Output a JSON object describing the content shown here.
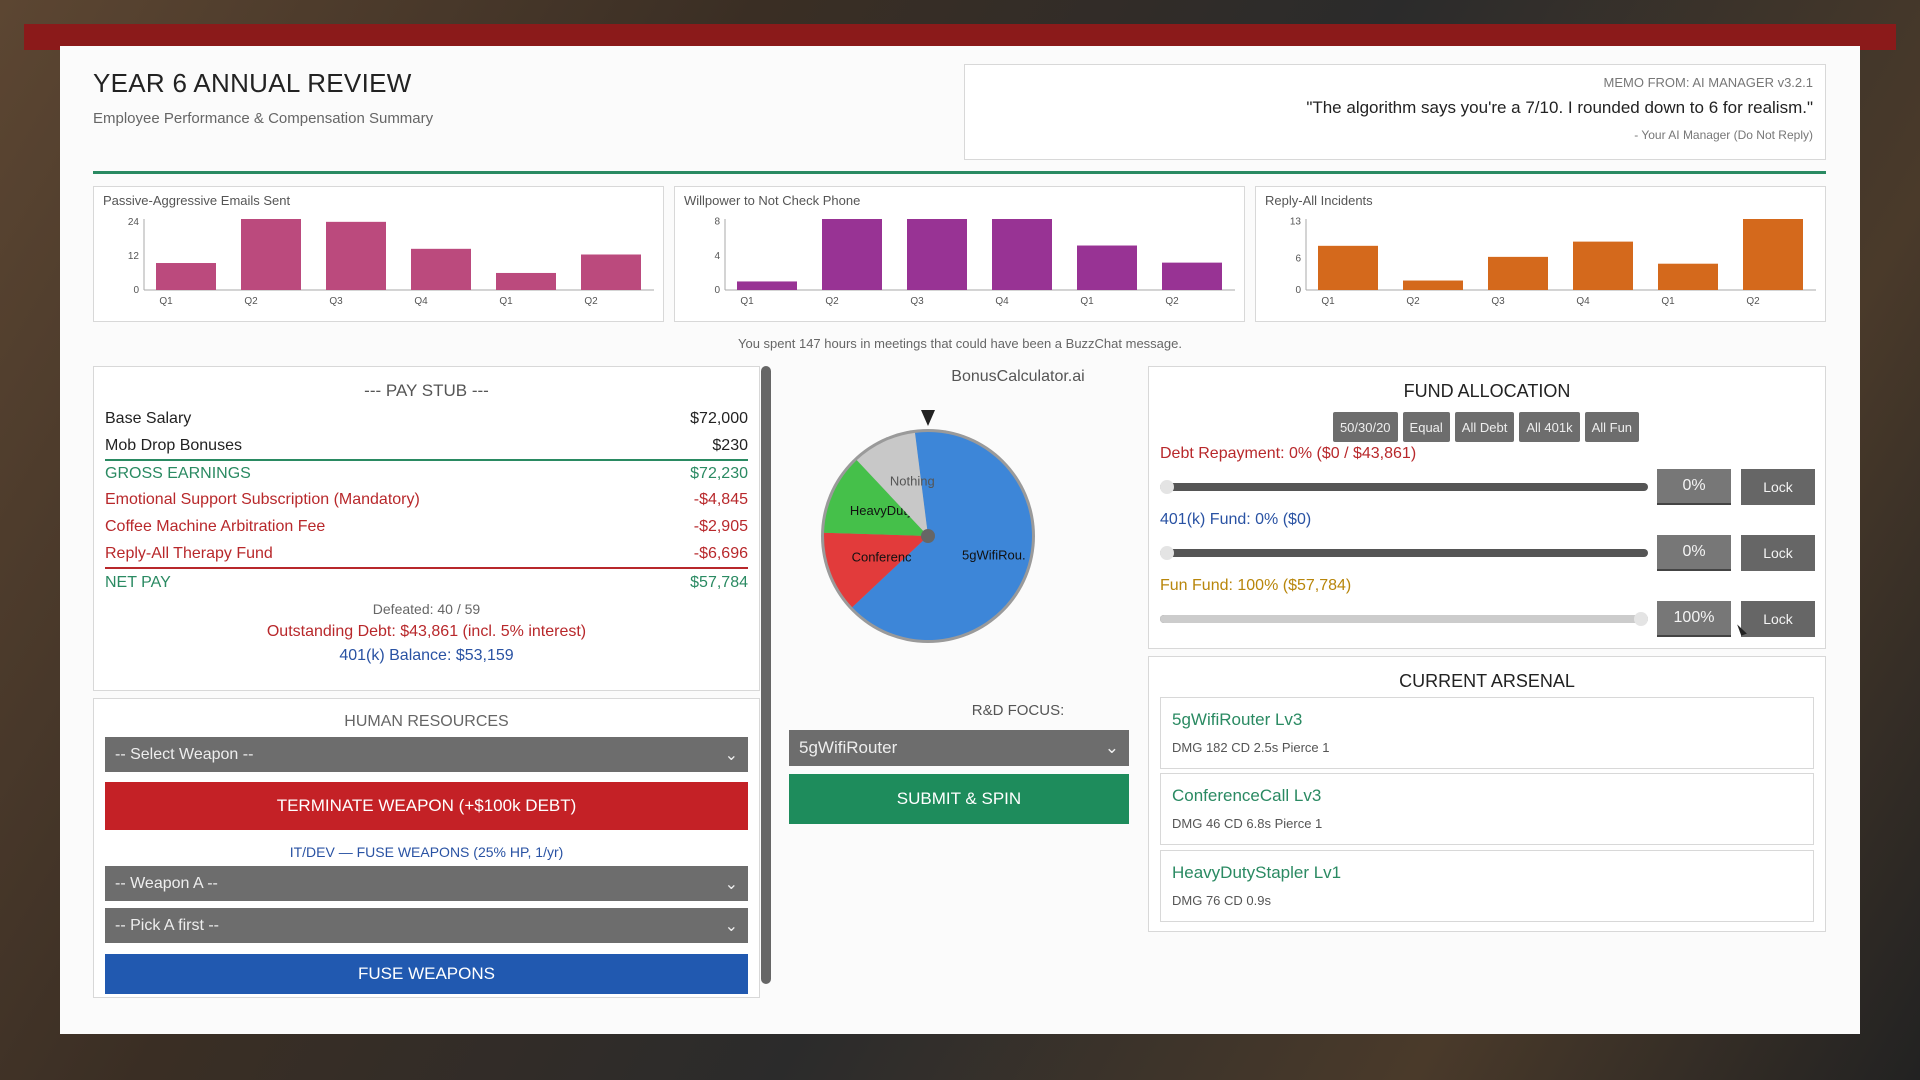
{
  "header": {
    "title": "YEAR 6 ANNUAL REVIEW",
    "subtitle": "Employee Performance & Compensation Summary"
  },
  "memo": {
    "from": "MEMO FROM: AI MANAGER v3.2.1",
    "quote": "\"The algorithm says you're a 7/10. I rounded down to 6 for realism.\"",
    "signature": "- Your AI Manager (Do Not Reply)"
  },
  "chart_data": [
    {
      "type": "bar",
      "title": "Passive-Aggressive Emails Sent",
      "categories": [
        "Q1",
        "Q2",
        "Q3",
        "Q4",
        "Q1",
        "Q2"
      ],
      "values": [
        9.5,
        25,
        24,
        14.5,
        6,
        12.5
      ],
      "yticks": [
        0,
        12,
        24
      ],
      "ylim": [
        0,
        25
      ],
      "color": "#bb4a7d"
    },
    {
      "type": "bar",
      "title": "Willpower to Not Check Phone",
      "categories": [
        "Q1",
        "Q2",
        "Q3",
        "Q4",
        "Q1",
        "Q2"
      ],
      "values": [
        1,
        8.3,
        8.3,
        8.3,
        5.2,
        3.2
      ],
      "yticks": [
        0,
        4,
        8
      ],
      "ylim": [
        0,
        8.3
      ],
      "color": "#983394"
    },
    {
      "type": "bar",
      "title": "Reply-All Incidents",
      "categories": [
        "Q1",
        "Q2",
        "Q3",
        "Q4",
        "Q1",
        "Q2"
      ],
      "values": [
        8.4,
        1.8,
        6.3,
        9.2,
        5,
        13.5
      ],
      "yticks": [
        0,
        6,
        13
      ],
      "ylim": [
        0,
        13.5
      ],
      "color": "#d4691c"
    }
  ],
  "meetings_note": "You spent 147 hours in meetings that could have been a BuzzChat message.",
  "paystub": {
    "heading": "--- PAY STUB ---",
    "base_salary_label": "Base Salary",
    "base_salary": "$72,000",
    "mob_label": "Mob Drop Bonuses",
    "mob": "$230",
    "gross_label": "GROSS EARNINGS",
    "gross": "$72,230",
    "deductions": [
      {
        "label": "Emotional Support Subscription (Mandatory)",
        "amount": "-$4,845"
      },
      {
        "label": "Coffee Machine Arbitration Fee",
        "amount": "-$2,905"
      },
      {
        "label": "Reply-All Therapy Fund",
        "amount": "-$6,696"
      }
    ],
    "net_label": "NET PAY",
    "net": "$57,784",
    "defeated": "Defeated: 40 / 59",
    "debt": "Outstanding Debt: $43,861 (incl. 5% interest)",
    "balance_401k": "401(k) Balance: $53,159"
  },
  "hr": {
    "heading": "HUMAN RESOURCES",
    "select_weapon": "-- Select Weapon --",
    "terminate": "TERMINATE WEAPON (+$100k DEBT)",
    "itdev": "IT/DEV — FUSE WEAPONS (25% HP, 1/yr)",
    "weapon_a": "-- Weapon A --",
    "pick_a": "-- Pick A first --",
    "fuse": "FUSE WEAPONS"
  },
  "bonus": {
    "title": "BonusCalculator.ai",
    "slices": [
      {
        "label": "5gWifiRou.",
        "color": "#3d86d8",
        "fraction": 0.65
      },
      {
        "label": "Conferenc",
        "color": "#e23b3b",
        "fraction": 0.125
      },
      {
        "label": "HeavyDuty.",
        "color": "#45c04a",
        "fraction": 0.125
      },
      {
        "label": "Nothing",
        "color": "#c8c8c8",
        "fraction": 0.1
      }
    ],
    "rd_label": "R&D FOCUS:",
    "rd_value": "5gWifiRouter",
    "submit": "SUBMIT & SPIN"
  },
  "fund": {
    "heading": "FUND ALLOCATION",
    "presets": [
      "50/30/20",
      "Equal",
      "All Debt",
      "All 401k",
      "All Fun"
    ],
    "rows": [
      {
        "label": "Debt Repayment: 0%  ($0 / $43,861)",
        "color": "#b8282b",
        "fraction": 0,
        "pct": "0%",
        "lock": "Lock"
      },
      {
        "label": "401(k) Fund: 0%  ($0)",
        "color": "#2952a3",
        "fraction": 0,
        "pct": "0%",
        "lock": "Lock"
      },
      {
        "label": "Fun Fund: 100%  ($57,784)",
        "color": "#b8860b",
        "fraction": 1,
        "pct": "100%",
        "lock": "Lock"
      }
    ]
  },
  "arsenal": {
    "heading": "CURRENT ARSENAL",
    "items": [
      {
        "name": "5gWifiRouter  Lv3",
        "stats": "DMG 182   CD 2.5s   Pierce 1"
      },
      {
        "name": "ConferenceCall  Lv3",
        "stats": "DMG 46   CD 6.8s   Pierce 1"
      },
      {
        "name": "HeavyDutyStapler  Lv1",
        "stats": "DMG 76   CD 0.9s"
      }
    ]
  }
}
